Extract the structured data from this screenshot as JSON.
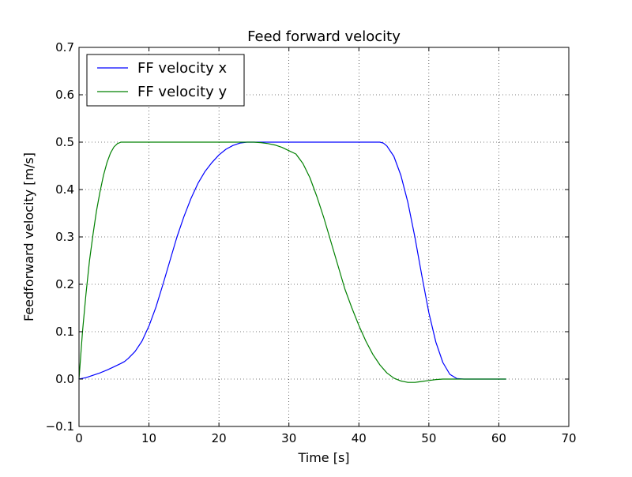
{
  "chart_data": {
    "type": "line",
    "title": "Feed forward velocity",
    "xlabel": "Time [s]",
    "ylabel": "Feedforward velocity [m/s]",
    "xlim": [
      0,
      70
    ],
    "ylim": [
      -0.1,
      0.7
    ],
    "xticks": [
      0,
      10,
      20,
      30,
      40,
      50,
      60,
      70
    ],
    "yticks": [
      -0.1,
      0.0,
      0.1,
      0.2,
      0.3,
      0.4,
      0.5,
      0.6,
      0.7
    ],
    "xtick_labels": [
      "0",
      "10",
      "20",
      "30",
      "40",
      "50",
      "60",
      "70"
    ],
    "ytick_labels": [
      "−0.1",
      "0.0",
      "0.1",
      "0.2",
      "0.3",
      "0.4",
      "0.5",
      "0.6",
      "0.7"
    ],
    "grid": true,
    "grid_style": "dotted",
    "legend_position": "top-left",
    "series": [
      {
        "name": "FF velocity x",
        "color": "#0000ff",
        "x": [
          0,
          1,
          2,
          3,
          4,
          5,
          6,
          6.5,
          7,
          8,
          9,
          10,
          11,
          12,
          13,
          14,
          15,
          16,
          17,
          18,
          19,
          20,
          21,
          22,
          23,
          24,
          25,
          26,
          27,
          28,
          29,
          30,
          31,
          32,
          33,
          34,
          35,
          36,
          37,
          38,
          39,
          40,
          41,
          42,
          42.5,
          43,
          43.5,
          44,
          45,
          46,
          47,
          48,
          49,
          50,
          51,
          52,
          53,
          54,
          55,
          56,
          57,
          58,
          59,
          60,
          61
        ],
        "y": [
          0,
          0.003,
          0.008,
          0.013,
          0.019,
          0.026,
          0.033,
          0.037,
          0.043,
          0.058,
          0.08,
          0.112,
          0.152,
          0.2,
          0.25,
          0.3,
          0.343,
          0.381,
          0.413,
          0.438,
          0.457,
          0.473,
          0.485,
          0.493,
          0.498,
          0.5,
          0.5,
          0.5,
          0.5,
          0.5,
          0.5,
          0.5,
          0.5,
          0.5,
          0.5,
          0.5,
          0.5,
          0.5,
          0.5,
          0.5,
          0.5,
          0.5,
          0.5,
          0.5,
          0.5,
          0.5,
          0.498,
          0.492,
          0.47,
          0.43,
          0.373,
          0.3,
          0.218,
          0.14,
          0.078,
          0.035,
          0.01,
          0.001,
          0,
          0,
          0,
          0,
          0,
          0,
          0
        ]
      },
      {
        "name": "FF velocity y",
        "color": "#008000",
        "x": [
          0,
          0.5,
          1,
          1.5,
          2,
          2.5,
          3,
          3.5,
          4,
          4.5,
          5,
          5.5,
          6,
          7,
          8,
          10,
          12,
          15,
          18,
          20,
          22,
          24,
          25,
          26,
          27,
          28,
          29,
          30,
          31,
          32,
          33,
          34,
          35,
          36,
          37,
          38,
          39,
          40,
          41,
          42,
          43,
          44,
          45,
          46,
          47,
          48,
          48.5,
          49,
          50,
          51,
          52,
          53,
          54,
          55,
          56,
          57,
          58,
          59,
          60,
          61
        ],
        "y": [
          0.0,
          0.1,
          0.18,
          0.25,
          0.305,
          0.355,
          0.395,
          0.43,
          0.457,
          0.477,
          0.49,
          0.497,
          0.5,
          0.5,
          0.5,
          0.5,
          0.5,
          0.5,
          0.5,
          0.5,
          0.5,
          0.5,
          0.5,
          0.499,
          0.497,
          0.494,
          0.489,
          0.482,
          0.475,
          0.455,
          0.425,
          0.385,
          0.34,
          0.29,
          0.24,
          0.19,
          0.15,
          0.113,
          0.08,
          0.052,
          0.03,
          0.013,
          0.002,
          -0.004,
          -0.007,
          -0.007,
          -0.006,
          -0.005,
          -0.003,
          -0.001,
          0,
          0,
          0,
          0,
          0,
          0,
          0,
          0,
          0,
          0
        ]
      }
    ]
  }
}
